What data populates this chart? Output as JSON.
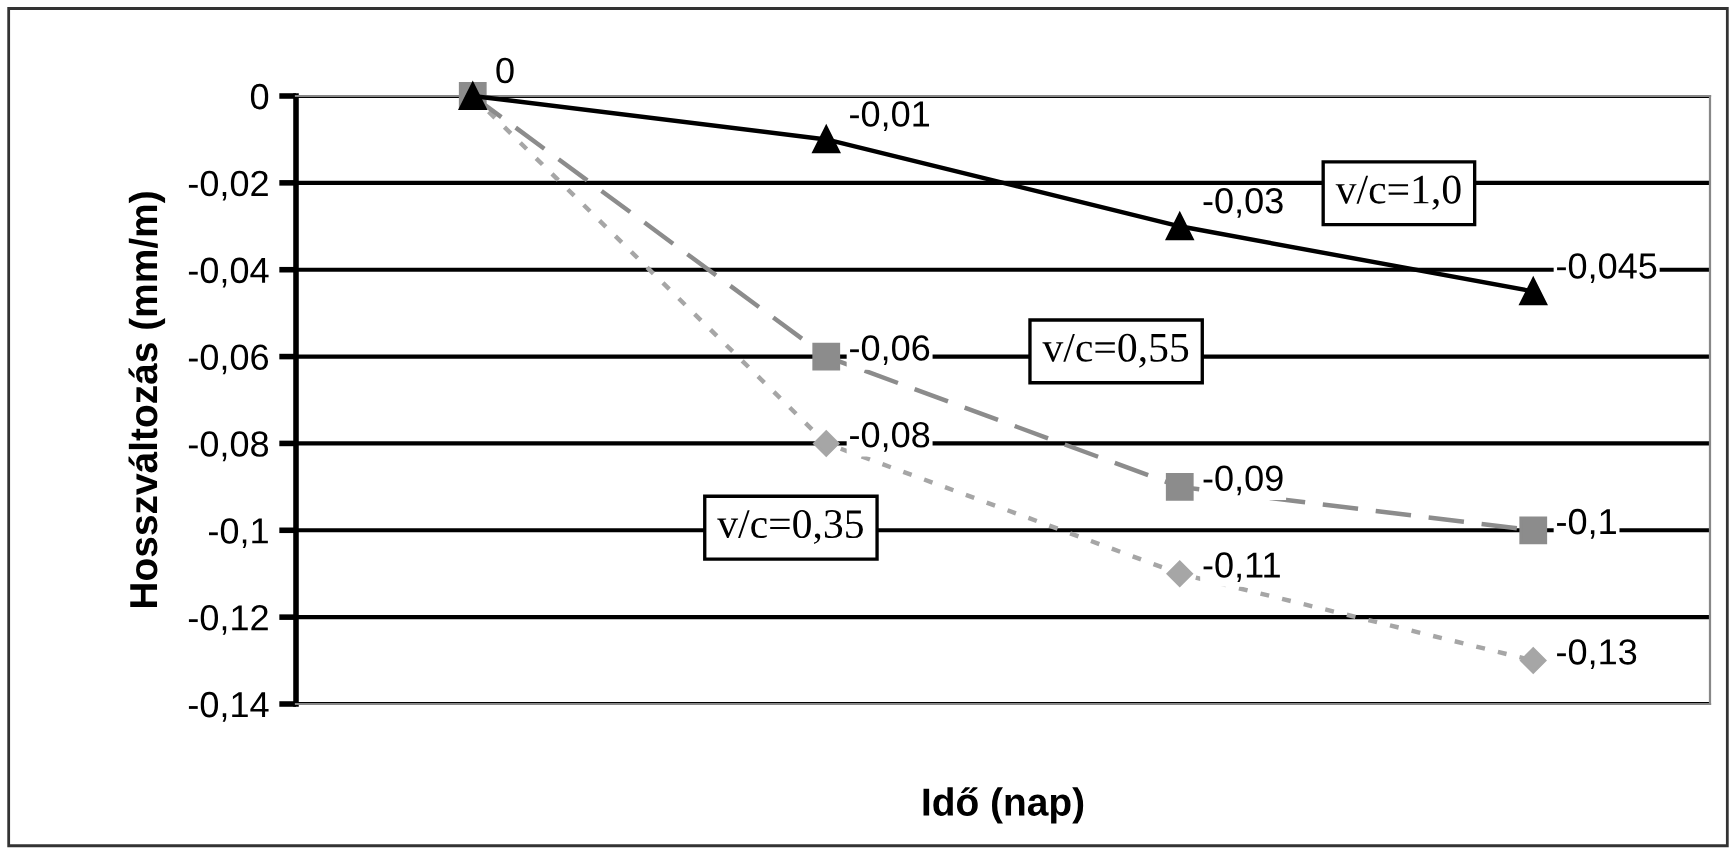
{
  "chart_data": {
    "type": "line",
    "xlabel": "Idő (nap)",
    "ylabel": "Hosszváltozás (mm/m)",
    "categories": [
      null,
      null,
      null,
      null
    ],
    "series": [
      {
        "name": "v/c=1,0",
        "color": "#000000",
        "marker": "triangle",
        "line_style": "solid",
        "values": [
          0,
          -0.01,
          -0.03,
          -0.045
        ],
        "value_labels": [
          "0",
          "-0,01",
          "-0,03",
          "-0,045"
        ]
      },
      {
        "name": "v/c=0,55",
        "color": "#8c8c8c",
        "marker": "square",
        "line_style": "dashed",
        "values": [
          0,
          -0.06,
          -0.09,
          -0.1
        ],
        "value_labels": [
          null,
          "-0,06",
          "-0,09",
          "-0,1"
        ]
      },
      {
        "name": "v/c=0,35",
        "color": "#a6a6a6",
        "marker": "diamond",
        "line_style": "dotted",
        "values": [
          0,
          -0.08,
          -0.11,
          -0.13
        ],
        "value_labels": [
          null,
          "-0,08",
          "-0,11",
          "-0,13"
        ]
      }
    ],
    "ylim": [
      -0.14,
      0
    ],
    "yticks": [
      {
        "value": 0,
        "label": "0"
      },
      {
        "value": -0.02,
        "label": "-0,02"
      },
      {
        "value": -0.04,
        "label": "-0,04"
      },
      {
        "value": -0.06,
        "label": "-0,06"
      },
      {
        "value": -0.08,
        "label": "-0,08"
      },
      {
        "value": -0.1,
        "label": "-0,1"
      },
      {
        "value": -0.12,
        "label": "-0,12"
      },
      {
        "value": -0.14,
        "label": "-0,14"
      }
    ],
    "grid": "y",
    "legend": false
  }
}
